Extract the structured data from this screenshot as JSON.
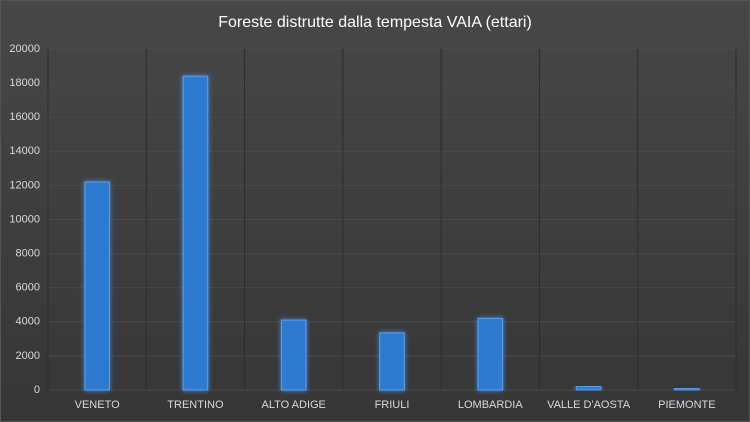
{
  "chart_data": {
    "type": "bar",
    "title": "Foreste distrutte dalla tempesta VAIA (ettari)",
    "categories": [
      "VENETO",
      "TRENTINO",
      "ALTO ADIGE",
      "FRIULI",
      "LOMBARDIA",
      "VALLE D'AOSTA",
      "PIEMONTE"
    ],
    "values": [
      12200,
      18400,
      4100,
      3350,
      4200,
      200,
      100
    ],
    "color": "#2f7ad0",
    "ylim": [
      0,
      20000
    ],
    "yticks": [
      0,
      2000,
      4000,
      6000,
      8000,
      10000,
      12000,
      14000,
      16000,
      18000,
      20000
    ],
    "grid": true
  }
}
